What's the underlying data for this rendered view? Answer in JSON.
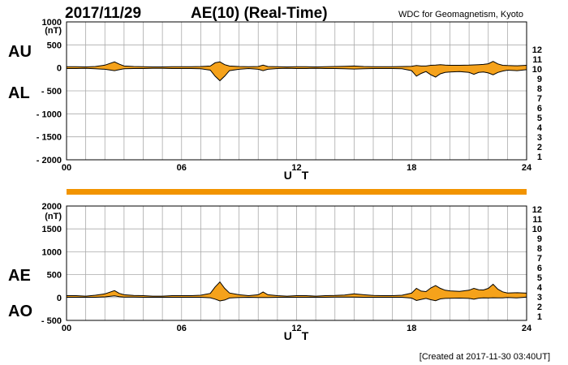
{
  "header": {
    "date": "2017/11/29",
    "title": "AE(10) (Real-Time)",
    "source": "WDC for Geomagnetism, Kyoto"
  },
  "footer": {
    "created": "[Created at 2017-11-30 03:40UT]"
  },
  "legend": [
    {
      "label": "12",
      "color": "#e0157a"
    },
    {
      "label": "11",
      "color": "#d0112b"
    },
    {
      "label": "10",
      "color": "#f29400"
    },
    {
      "label": "9",
      "color": "#e8e800"
    },
    {
      "label": "8",
      "color": "#7fd000"
    },
    {
      "label": "7",
      "color": "#22c7e0"
    },
    {
      "label": "6",
      "color": "#1a5ee6"
    },
    {
      "label": "5",
      "color": "#2a2ab0"
    },
    {
      "label": "4",
      "color": "#d11ad1"
    },
    {
      "label": "3",
      "color": "#000000"
    },
    {
      "label": "2",
      "color": "#777777"
    },
    {
      "label": "1",
      "color": "#bbbbbb"
    }
  ],
  "colors": {
    "fill": "#f5a21b",
    "line": "#000000",
    "grid": "#aaaaaa",
    "bar": "#f29400"
  },
  "chart_data": [
    {
      "type": "area",
      "id": "au-al",
      "xlabel": "U T",
      "yunit": "(nT)",
      "upper_label": "AU",
      "lower_label": "AL",
      "xlim": [
        0,
        24
      ],
      "ylim": [
        -2000,
        1000
      ],
      "xticks": [
        {
          "v": 0,
          "label": "00"
        },
        {
          "v": 6,
          "label": "06"
        },
        {
          "v": 12,
          "label": "12"
        },
        {
          "v": 18,
          "label": "18"
        },
        {
          "v": 24,
          "label": "24"
        }
      ],
      "yticks": [
        {
          "v": 1000,
          "label": "1000"
        },
        {
          "v": 500,
          "label": "500"
        },
        {
          "v": 0,
          "label": "0"
        },
        {
          "v": -500,
          "label": "- 500"
        },
        {
          "v": -1000,
          "label": "- 1000"
        },
        {
          "v": -1500,
          "label": "- 1500"
        },
        {
          "v": -2000,
          "label": "- 2000"
        }
      ],
      "series": [
        {
          "name": "AU",
          "x": [
            0,
            0.5,
            1,
            1.5,
            2,
            2.5,
            2.75,
            3,
            3.5,
            4,
            4.5,
            5,
            5.5,
            6,
            6.5,
            7,
            7.5,
            7.75,
            8,
            8.25,
            8.5,
            9,
            9.5,
            10,
            10.25,
            10.5,
            11,
            11.5,
            12,
            12.5,
            13,
            13.5,
            14,
            14.5,
            15,
            15.5,
            16,
            16.5,
            17,
            17.5,
            18,
            18.25,
            18.5,
            18.75,
            19,
            19.25,
            19.5,
            19.75,
            20,
            20.5,
            21,
            21.25,
            21.5,
            21.75,
            22,
            22.25,
            22.5,
            22.75,
            23,
            23.5,
            24
          ],
          "y": [
            25,
            25,
            20,
            30,
            60,
            130,
            80,
            40,
            30,
            25,
            20,
            20,
            25,
            25,
            25,
            30,
            40,
            110,
            130,
            70,
            40,
            30,
            25,
            30,
            60,
            30,
            25,
            20,
            25,
            25,
            20,
            25,
            30,
            35,
            40,
            30,
            25,
            25,
            25,
            30,
            35,
            50,
            40,
            40,
            55,
            60,
            70,
            60,
            55,
            55,
            60,
            65,
            70,
            75,
            90,
            140,
            85,
            55,
            50,
            45,
            55
          ]
        },
        {
          "name": "AL",
          "x": [
            0,
            0.5,
            1,
            1.5,
            2,
            2.5,
            2.75,
            3,
            3.5,
            4,
            4.5,
            5,
            5.5,
            6,
            6.5,
            7,
            7.5,
            7.75,
            8,
            8.25,
            8.5,
            9,
            9.5,
            10,
            10.25,
            10.5,
            11,
            11.5,
            12,
            12.5,
            13,
            13.5,
            14,
            14.5,
            15,
            15.5,
            16,
            16.5,
            17,
            17.5,
            18,
            18.25,
            18.5,
            18.75,
            19,
            19.25,
            19.5,
            19.75,
            20,
            20.5,
            21,
            21.25,
            21.5,
            21.75,
            22,
            22.25,
            22.5,
            22.75,
            23,
            23.5,
            24
          ],
          "y": [
            -15,
            -15,
            -10,
            -20,
            -30,
            -60,
            -40,
            -20,
            -15,
            -15,
            -10,
            -10,
            -15,
            -15,
            -15,
            -20,
            -50,
            -180,
            -280,
            -180,
            -60,
            -30,
            -15,
            -30,
            -60,
            -30,
            -15,
            -10,
            -15,
            -15,
            -10,
            -15,
            -15,
            -20,
            -25,
            -20,
            -15,
            -15,
            -15,
            -20,
            -60,
            -180,
            -120,
            -80,
            -150,
            -200,
            -130,
            -100,
            -90,
            -80,
            -100,
            -140,
            -100,
            -90,
            -110,
            -150,
            -100,
            -70,
            -50,
            -60,
            -40
          ]
        }
      ]
    },
    {
      "type": "area",
      "id": "ae-ao",
      "xlabel": "U T",
      "yunit": "(nT)",
      "upper_label": "AE",
      "lower_label": "AO",
      "xlim": [
        0,
        24
      ],
      "ylim": [
        -500,
        2000
      ],
      "xticks": [
        {
          "v": 0,
          "label": "00"
        },
        {
          "v": 6,
          "label": "06"
        },
        {
          "v": 12,
          "label": "12"
        },
        {
          "v": 18,
          "label": "18"
        },
        {
          "v": 24,
          "label": "24"
        }
      ],
      "yticks": [
        {
          "v": 2000,
          "label": "2000"
        },
        {
          "v": 1500,
          "label": "1500"
        },
        {
          "v": 1000,
          "label": "1000"
        },
        {
          "v": 500,
          "label": "500"
        },
        {
          "v": 0,
          "label": "0"
        },
        {
          "v": -500,
          "label": "- 500"
        }
      ],
      "series": [
        {
          "name": "AE",
          "x": [
            0,
            0.5,
            1,
            1.5,
            2,
            2.5,
            2.75,
            3,
            3.5,
            4,
            4.5,
            5,
            5.5,
            6,
            6.5,
            7,
            7.5,
            7.75,
            8,
            8.25,
            8.5,
            9,
            9.5,
            10,
            10.25,
            10.5,
            11,
            11.5,
            12,
            12.5,
            13,
            13.5,
            14,
            14.5,
            15,
            15.5,
            16,
            16.5,
            17,
            17.5,
            18,
            18.25,
            18.5,
            18.75,
            19,
            19.25,
            19.5,
            19.75,
            20,
            20.5,
            21,
            21.25,
            21.5,
            21.75,
            22,
            22.25,
            22.5,
            22.75,
            23,
            23.5,
            24
          ],
          "y": [
            40,
            40,
            30,
            50,
            80,
            150,
            90,
            60,
            45,
            40,
            30,
            30,
            40,
            40,
            40,
            50,
            90,
            230,
            340,
            200,
            100,
            60,
            40,
            60,
            120,
            60,
            40,
            30,
            40,
            40,
            30,
            40,
            45,
            55,
            80,
            60,
            45,
            40,
            40,
            50,
            95,
            200,
            140,
            130,
            210,
            260,
            200,
            160,
            145,
            135,
            160,
            200,
            170,
            165,
            200,
            290,
            180,
            125,
            100,
            105,
            95
          ]
        },
        {
          "name": "AO",
          "x": [
            0,
            0.5,
            1,
            1.5,
            2,
            2.5,
            2.75,
            3,
            3.5,
            4,
            4.5,
            5,
            5.5,
            6,
            6.5,
            7,
            7.5,
            7.75,
            8,
            8.25,
            8.5,
            9,
            9.5,
            10,
            10.25,
            10.5,
            11,
            11.5,
            12,
            12.5,
            13,
            13.5,
            14,
            14.5,
            15,
            15.5,
            16,
            16.5,
            17,
            17.5,
            18,
            18.25,
            18.5,
            18.75,
            19,
            19.25,
            19.5,
            19.75,
            20,
            20.5,
            21,
            21.25,
            21.5,
            21.75,
            22,
            22.25,
            22.5,
            22.75,
            23,
            23.5,
            24
          ],
          "y": [
            5,
            5,
            5,
            5,
            15,
            35,
            20,
            10,
            8,
            5,
            5,
            5,
            5,
            5,
            5,
            5,
            -5,
            -35,
            -75,
            -55,
            -10,
            0,
            5,
            0,
            0,
            0,
            5,
            5,
            5,
            5,
            5,
            5,
            8,
            8,
            8,
            5,
            5,
            5,
            5,
            5,
            -12,
            -65,
            -40,
            -20,
            -48,
            -70,
            -30,
            -20,
            -18,
            -12,
            -20,
            -38,
            -15,
            -8,
            -10,
            -5,
            -8,
            -8,
            0,
            -8,
            8
          ]
        }
      ]
    }
  ]
}
